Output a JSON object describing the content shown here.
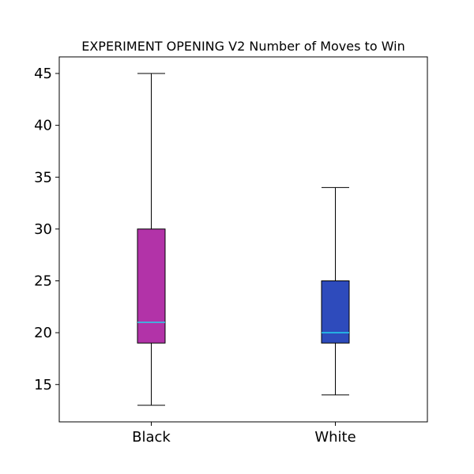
{
  "chart_data": {
    "type": "boxplot",
    "title": "EXPERIMENT OPENING V2 Number of Moves to Win",
    "xlabel": "",
    "ylabel": "",
    "categories": [
      "Black",
      "White"
    ],
    "ylim": [
      11.4,
      46.6
    ],
    "yticks": [
      15,
      20,
      25,
      30,
      35,
      40,
      45
    ],
    "grid": false,
    "boxes": [
      {
        "label": "Black",
        "whisker_low": 13,
        "q1": 19,
        "median": 21,
        "q3": 30,
        "whisker_high": 45,
        "color": "#b233a8"
      },
      {
        "label": "White",
        "whisker_low": 14,
        "q1": 19,
        "median": 20,
        "q3": 25,
        "whisker_high": 34,
        "color": "#2e4bbc"
      }
    ],
    "median_color": "#22d3ee"
  }
}
